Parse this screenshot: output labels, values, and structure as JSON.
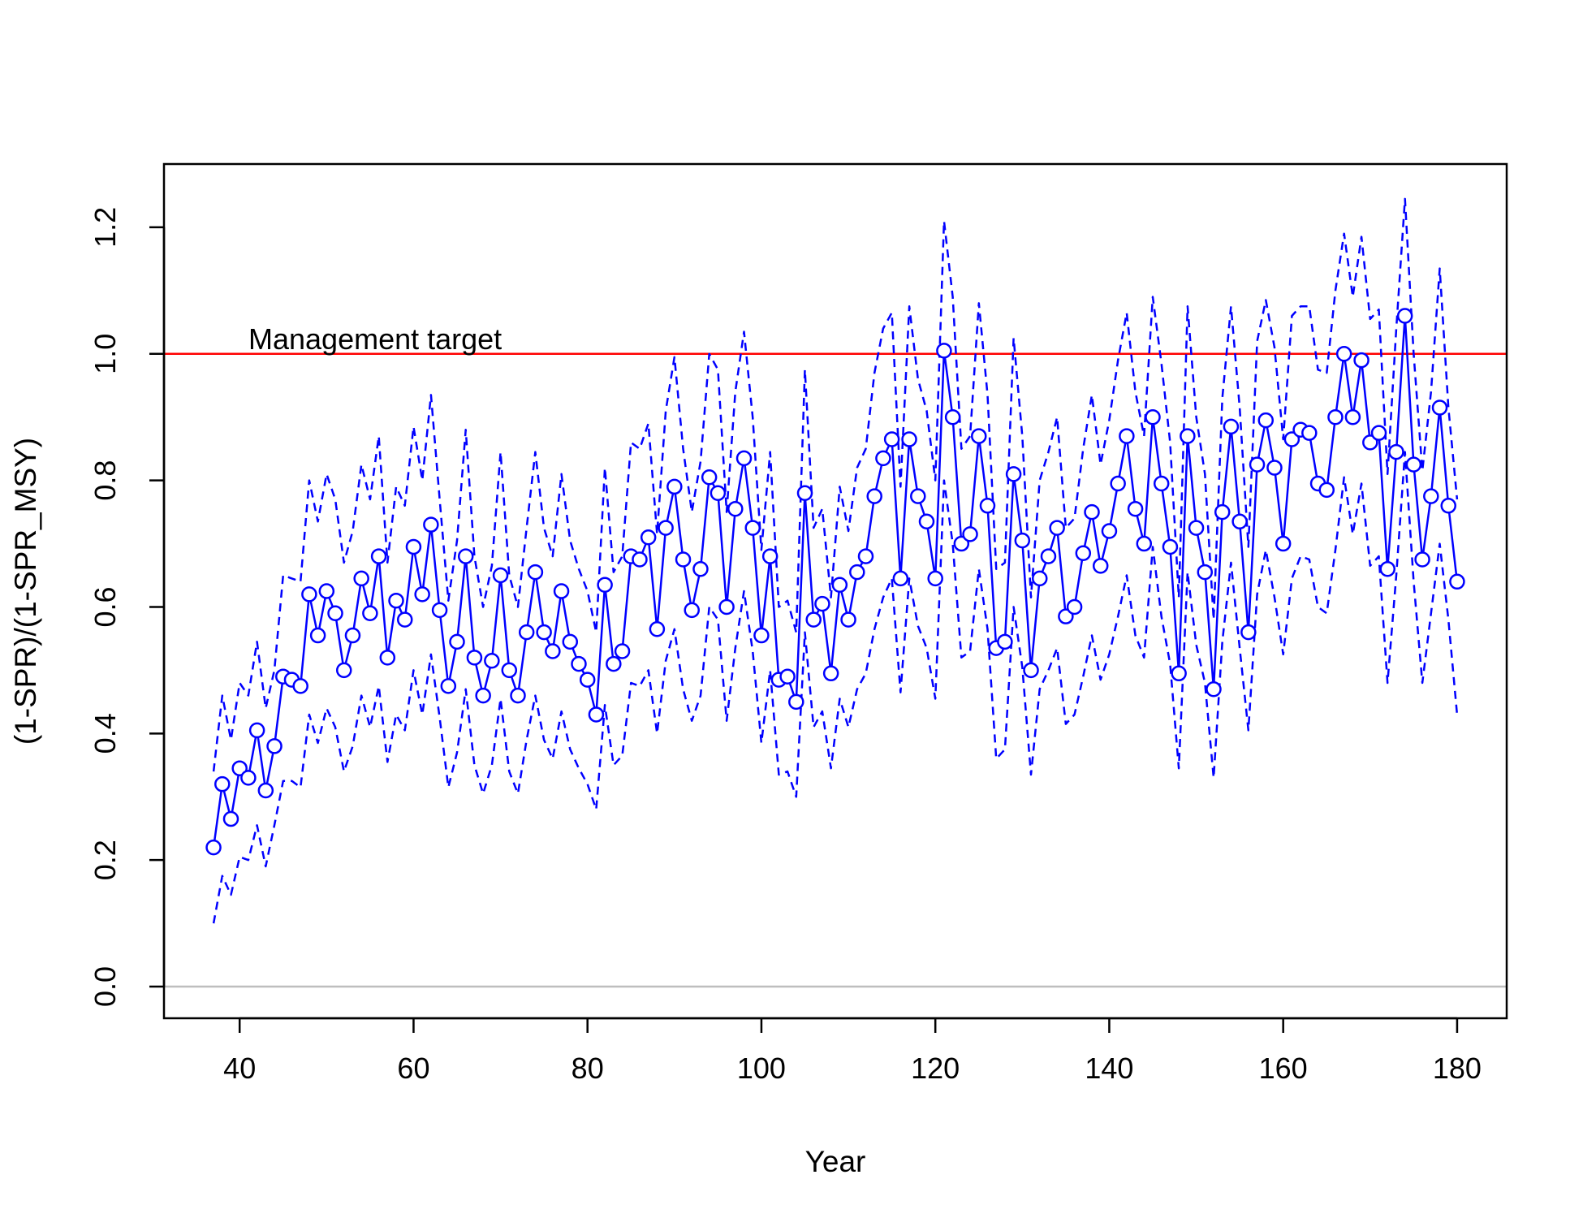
{
  "chart_data": {
    "type": "line",
    "title": "",
    "xlabel": "Year",
    "ylabel": "(1-SPR)/(1-SPR_MSY)",
    "xlim": [
      31.3,
      185.7
    ],
    "ylim": [
      -0.05,
      1.3
    ],
    "xticks": [
      40,
      60,
      80,
      100,
      120,
      140,
      160,
      180
    ],
    "yticks": [
      0.0,
      0.2,
      0.4,
      0.6,
      0.8,
      1.0,
      1.2
    ],
    "xtick_labels": [
      "40",
      "60",
      "80",
      "100",
      "120",
      "140",
      "160",
      "180"
    ],
    "ytick_labels": [
      "0.0",
      "0.2",
      "0.4",
      "0.6",
      "0.8",
      "1.0",
      "1.2"
    ],
    "grid": false,
    "legend": "none",
    "reference_lines": [
      {
        "y": 1.0,
        "color": "#ff0000",
        "label": "Management target"
      },
      {
        "y": 0.0,
        "color": "#bebebe",
        "label": ""
      }
    ],
    "annotations": [
      {
        "text": "Management target",
        "x": 41,
        "y": 1.0
      }
    ],
    "colors": {
      "series": "#0000ff",
      "target": "#ff0000",
      "zero": "#bebebe"
    },
    "x": [
      37,
      38,
      39,
      40,
      41,
      42,
      43,
      44,
      45,
      46,
      47,
      48,
      49,
      50,
      51,
      52,
      53,
      54,
      55,
      56,
      57,
      58,
      59,
      60,
      61,
      62,
      63,
      64,
      65,
      66,
      67,
      68,
      69,
      70,
      71,
      72,
      73,
      74,
      75,
      76,
      77,
      78,
      79,
      80,
      81,
      82,
      83,
      84,
      85,
      86,
      87,
      88,
      89,
      90,
      91,
      92,
      93,
      94,
      95,
      96,
      97,
      98,
      99,
      100,
      101,
      102,
      103,
      104,
      105,
      106,
      107,
      108,
      109,
      110,
      111,
      112,
      113,
      114,
      115,
      116,
      117,
      118,
      119,
      120,
      121,
      122,
      123,
      124,
      125,
      126,
      127,
      128,
      129,
      130,
      131,
      132,
      133,
      134,
      135,
      136,
      137,
      138,
      139,
      140,
      141,
      142,
      143,
      144,
      145,
      146,
      147,
      148,
      149,
      150,
      151,
      152,
      153,
      154,
      155,
      156,
      157,
      158,
      159,
      160,
      161,
      162,
      163,
      164,
      165,
      166,
      167,
      168,
      169,
      170,
      171,
      172,
      173,
      174,
      175,
      176,
      177,
      178,
      179,
      180
    ],
    "series": [
      {
        "role": "estimate",
        "style": "solid-with-circles",
        "values": [
          0.22,
          0.32,
          0.265,
          0.345,
          0.33,
          0.405,
          0.31,
          0.38,
          0.49,
          0.485,
          0.475,
          0.62,
          0.555,
          0.625,
          0.59,
          0.5,
          0.555,
          0.645,
          0.59,
          0.68,
          0.52,
          0.61,
          0.58,
          0.695,
          0.62,
          0.73,
          0.595,
          0.475,
          0.545,
          0.68,
          0.52,
          0.46,
          0.515,
          0.65,
          0.5,
          0.46,
          0.56,
          0.655,
          0.56,
          0.53,
          0.625,
          0.545,
          0.51,
          0.485,
          0.43,
          0.635,
          0.51,
          0.53,
          0.68,
          0.675,
          0.71,
          0.565,
          0.725,
          0.79,
          0.675,
          0.595,
          0.66,
          0.805,
          0.78,
          0.6,
          0.755,
          0.835,
          0.725,
          0.555,
          0.68,
          0.485,
          0.49,
          0.45,
          0.78,
          0.58,
          0.605,
          0.495,
          0.635,
          0.58,
          0.655,
          0.68,
          0.775,
          0.835,
          0.865,
          0.645,
          0.865,
          0.775,
          0.735,
          0.645,
          1.005,
          0.9,
          0.7,
          0.715,
          0.87,
          0.76,
          0.535,
          0.545,
          0.81,
          0.705,
          0.5,
          0.645,
          0.68,
          0.725,
          0.585,
          0.6,
          0.685,
          0.75,
          0.665,
          0.72,
          0.795,
          0.87,
          0.755,
          0.7,
          0.9,
          0.795,
          0.695,
          0.495,
          0.87,
          0.725,
          0.655,
          0.47,
          0.75,
          0.885,
          0.735,
          0.56,
          0.825,
          0.895,
          0.82,
          0.7,
          0.865,
          0.88,
          0.875,
          0.795,
          0.785,
          0.9,
          1.0,
          0.9,
          0.99,
          0.86,
          0.875,
          0.66,
          0.845,
          1.06,
          0.825,
          0.675,
          0.775,
          0.915,
          0.76,
          0.64
        ]
      },
      {
        "role": "upper-bound",
        "style": "dashed",
        "values": [
          0.34,
          0.46,
          0.39,
          0.48,
          0.46,
          0.545,
          0.44,
          0.5,
          0.65,
          0.645,
          0.64,
          0.8,
          0.735,
          0.81,
          0.77,
          0.67,
          0.72,
          0.825,
          0.77,
          0.87,
          0.67,
          0.79,
          0.76,
          0.885,
          0.8,
          0.935,
          0.77,
          0.61,
          0.705,
          0.88,
          0.68,
          0.6,
          0.665,
          0.845,
          0.65,
          0.6,
          0.725,
          0.845,
          0.725,
          0.68,
          0.81,
          0.705,
          0.66,
          0.625,
          0.56,
          0.82,
          0.655,
          0.68,
          0.86,
          0.85,
          0.89,
          0.715,
          0.91,
          0.995,
          0.85,
          0.75,
          0.83,
          1.0,
          0.975,
          0.75,
          0.94,
          1.035,
          0.9,
          0.69,
          0.845,
          0.6,
          0.61,
          0.56,
          0.975,
          0.725,
          0.755,
          0.615,
          0.79,
          0.72,
          0.82,
          0.85,
          0.97,
          1.04,
          1.065,
          0.79,
          1.075,
          0.96,
          0.91,
          0.8,
          1.21,
          1.09,
          0.85,
          0.87,
          1.08,
          0.935,
          0.66,
          0.67,
          1.025,
          0.87,
          0.615,
          0.8,
          0.845,
          0.9,
          0.725,
          0.74,
          0.85,
          0.935,
          0.825,
          0.895,
          0.99,
          1.065,
          0.94,
          0.87,
          1.09,
          0.985,
          0.86,
          0.615,
          1.075,
          0.9,
          0.81,
          0.58,
          0.93,
          1.075,
          0.915,
          0.695,
          1.02,
          1.085,
          1.01,
          0.865,
          1.06,
          1.075,
          1.075,
          0.975,
          0.97,
          1.1,
          1.19,
          1.09,
          1.185,
          1.055,
          1.07,
          0.81,
          1.04,
          1.245,
          1.0,
          0.815,
          0.94,
          1.135,
          0.915,
          0.77
        ]
      },
      {
        "role": "lower-bound",
        "style": "dashed",
        "values": [
          0.1,
          0.175,
          0.145,
          0.205,
          0.2,
          0.255,
          0.19,
          0.255,
          0.325,
          0.325,
          0.315,
          0.43,
          0.385,
          0.44,
          0.41,
          0.34,
          0.38,
          0.46,
          0.41,
          0.475,
          0.355,
          0.43,
          0.405,
          0.5,
          0.43,
          0.525,
          0.425,
          0.315,
          0.37,
          0.47,
          0.35,
          0.305,
          0.35,
          0.455,
          0.34,
          0.305,
          0.39,
          0.46,
          0.39,
          0.36,
          0.435,
          0.375,
          0.345,
          0.32,
          0.28,
          0.445,
          0.35,
          0.365,
          0.48,
          0.475,
          0.5,
          0.4,
          0.515,
          0.565,
          0.47,
          0.42,
          0.46,
          0.6,
          0.58,
          0.42,
          0.535,
          0.625,
          0.53,
          0.385,
          0.5,
          0.335,
          0.34,
          0.3,
          0.56,
          0.41,
          0.435,
          0.345,
          0.455,
          0.41,
          0.47,
          0.495,
          0.565,
          0.615,
          0.645,
          0.465,
          0.645,
          0.57,
          0.535,
          0.455,
          0.8,
          0.7,
          0.52,
          0.53,
          0.66,
          0.565,
          0.36,
          0.375,
          0.6,
          0.505,
          0.335,
          0.47,
          0.5,
          0.535,
          0.415,
          0.43,
          0.49,
          0.555,
          0.485,
          0.525,
          0.585,
          0.65,
          0.555,
          0.52,
          0.695,
          0.585,
          0.51,
          0.345,
          0.655,
          0.54,
          0.48,
          0.33,
          0.545,
          0.67,
          0.535,
          0.405,
          0.62,
          0.69,
          0.615,
          0.525,
          0.645,
          0.68,
          0.675,
          0.6,
          0.59,
          0.69,
          0.805,
          0.715,
          0.795,
          0.665,
          0.68,
          0.48,
          0.65,
          0.845,
          0.64,
          0.48,
          0.59,
          0.7,
          0.58,
          0.43
        ]
      }
    ]
  }
}
